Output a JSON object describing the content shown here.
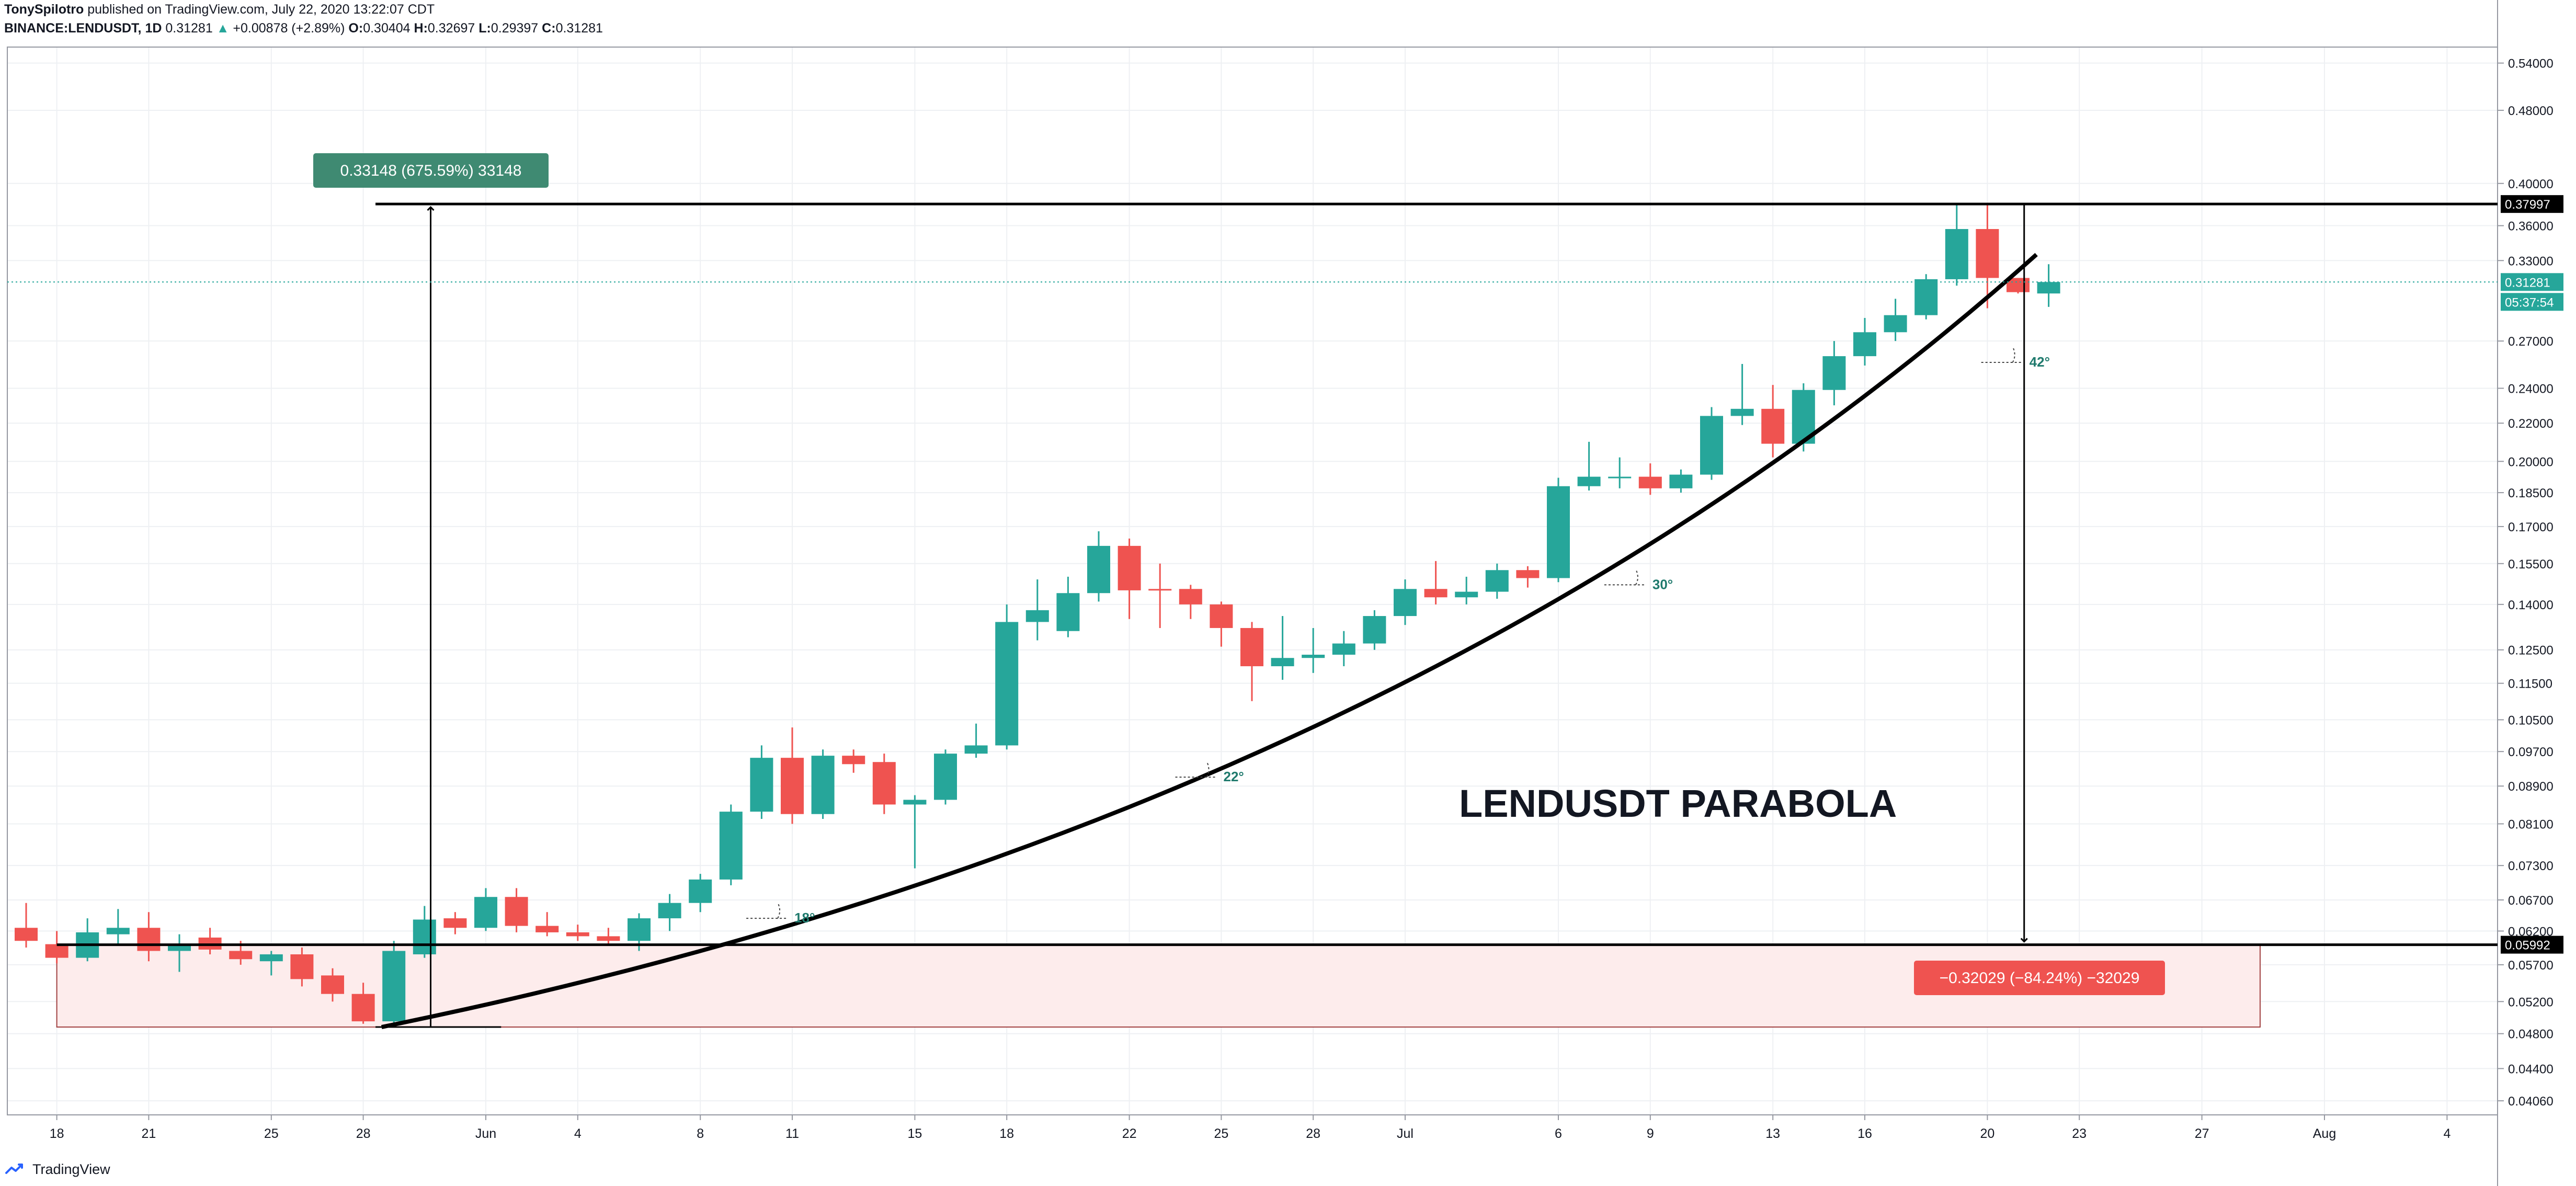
{
  "header": {
    "author": "TonySpilotro",
    "published": "published on TradingView.com, July 22, 2020 13:22:07 CDT",
    "symbol": "BINANCE:LENDUSDT, 1D",
    "last": "0.31281",
    "change_arrow": "▲",
    "change": "+0.00878 (+2.89%)",
    "o_label": "O:",
    "o": "0.30404",
    "h_label": "H:",
    "h": "0.32697",
    "l_label": "L:",
    "l": "0.29397",
    "c_label": "C:",
    "c": "0.31281"
  },
  "footer": {
    "brand": "TradingView"
  },
  "colors": {
    "up": "#26a69a",
    "down": "#ef5350",
    "line": "#000000",
    "range_fill": "#fdecec"
  },
  "chart_data": {
    "type": "candlestick",
    "title": "LENDUSDT PARABOLA",
    "y_scale": "log",
    "ylim": [
      0.0392,
      0.562
    ],
    "grid": true,
    "x_tick_labels": [
      "18",
      "21",
      "25",
      "28",
      "Jun",
      "4",
      "8",
      "11",
      "15",
      "18",
      "22",
      "25",
      "28",
      "Jul",
      "6",
      "9",
      "13",
      "16",
      "20",
      "23",
      "27",
      "Aug",
      "4"
    ],
    "y_tick_labels": [
      "0.54000",
      "0.48000",
      "0.40000",
      "0.36000",
      "0.33000",
      "0.27000",
      "0.24000",
      "0.22000",
      "0.20000",
      "0.18500",
      "0.17000",
      "0.15500",
      "0.14000",
      "0.12500",
      "0.11500",
      "0.10500",
      "0.09700",
      "0.08900",
      "0.08100",
      "0.07300",
      "0.06700",
      "0.06200",
      "0.05700",
      "0.05200",
      "0.04800",
      "0.04400",
      "0.04060"
    ],
    "price_labels": {
      "high_line": "0.37997",
      "last": "0.31281",
      "countdown": "05:37:54",
      "low_line": "0.05992"
    },
    "candles": [
      {
        "date": "May 17",
        "o": 0.0625,
        "h": 0.0665,
        "l": 0.0595,
        "c": 0.0605
      },
      {
        "date": "May 18",
        "o": 0.06,
        "h": 0.062,
        "l": 0.0572,
        "c": 0.058
      },
      {
        "date": "May 19",
        "o": 0.058,
        "h": 0.064,
        "l": 0.0575,
        "c": 0.0618
      },
      {
        "date": "May 20",
        "o": 0.0615,
        "h": 0.0655,
        "l": 0.06,
        "c": 0.0625
      },
      {
        "date": "May 21",
        "o": 0.0625,
        "h": 0.065,
        "l": 0.0575,
        "c": 0.059
      },
      {
        "date": "May 22",
        "o": 0.059,
        "h": 0.0615,
        "l": 0.056,
        "c": 0.06
      },
      {
        "date": "May 23",
        "o": 0.061,
        "h": 0.0625,
        "l": 0.0585,
        "c": 0.0592
      },
      {
        "date": "May 24",
        "o": 0.059,
        "h": 0.0605,
        "l": 0.057,
        "c": 0.0578
      },
      {
        "date": "May 25",
        "o": 0.0575,
        "h": 0.059,
        "l": 0.0555,
        "c": 0.0585
      },
      {
        "date": "May 26",
        "o": 0.0585,
        "h": 0.0595,
        "l": 0.054,
        "c": 0.055
      },
      {
        "date": "May 27",
        "o": 0.0555,
        "h": 0.0565,
        "l": 0.052,
        "c": 0.053
      },
      {
        "date": "May 28",
        "o": 0.053,
        "h": 0.0545,
        "l": 0.0492,
        "c": 0.0495
      },
      {
        "date": "May 29",
        "o": 0.0495,
        "h": 0.0605,
        "l": 0.049,
        "c": 0.059
      },
      {
        "date": "May 30",
        "o": 0.0585,
        "h": 0.066,
        "l": 0.058,
        "c": 0.0638
      },
      {
        "date": "May 31",
        "o": 0.064,
        "h": 0.065,
        "l": 0.0615,
        "c": 0.0625
      },
      {
        "date": "Jun 1",
        "o": 0.0625,
        "h": 0.069,
        "l": 0.062,
        "c": 0.0675
      },
      {
        "date": "Jun 2",
        "o": 0.0675,
        "h": 0.069,
        "l": 0.0618,
        "c": 0.0628
      },
      {
        "date": "Jun 3",
        "o": 0.0628,
        "h": 0.065,
        "l": 0.0612,
        "c": 0.0618
      },
      {
        "date": "Jun 4",
        "o": 0.0618,
        "h": 0.063,
        "l": 0.0605,
        "c": 0.0612
      },
      {
        "date": "Jun 5",
        "o": 0.0612,
        "h": 0.0625,
        "l": 0.06,
        "c": 0.0605
      },
      {
        "date": "Jun 6",
        "o": 0.0605,
        "h": 0.0648,
        "l": 0.059,
        "c": 0.064
      },
      {
        "date": "Jun 7",
        "o": 0.064,
        "h": 0.068,
        "l": 0.062,
        "c": 0.0665
      },
      {
        "date": "Jun 8",
        "o": 0.0665,
        "h": 0.0715,
        "l": 0.065,
        "c": 0.0705
      },
      {
        "date": "Jun 9",
        "o": 0.0705,
        "h": 0.085,
        "l": 0.0695,
        "c": 0.0835
      },
      {
        "date": "Jun 10",
        "o": 0.0835,
        "h": 0.0985,
        "l": 0.082,
        "c": 0.0955
      },
      {
        "date": "Jun 11",
        "o": 0.0955,
        "h": 0.103,
        "l": 0.081,
        "c": 0.083
      },
      {
        "date": "Jun 12",
        "o": 0.083,
        "h": 0.0975,
        "l": 0.082,
        "c": 0.096
      },
      {
        "date": "Jun 13",
        "o": 0.096,
        "h": 0.0975,
        "l": 0.092,
        "c": 0.094
      },
      {
        "date": "Jun 14",
        "o": 0.0945,
        "h": 0.0965,
        "l": 0.083,
        "c": 0.085
      },
      {
        "date": "Jun 15",
        "o": 0.085,
        "h": 0.087,
        "l": 0.0725,
        "c": 0.086
      },
      {
        "date": "Jun 16",
        "o": 0.086,
        "h": 0.0975,
        "l": 0.085,
        "c": 0.0965
      },
      {
        "date": "Jun 17",
        "o": 0.0965,
        "h": 0.104,
        "l": 0.0955,
        "c": 0.0985
      },
      {
        "date": "Jun 18",
        "o": 0.0985,
        "h": 0.14,
        "l": 0.0975,
        "c": 0.134
      },
      {
        "date": "Jun 19",
        "o": 0.134,
        "h": 0.149,
        "l": 0.128,
        "c": 0.138
      },
      {
        "date": "Jun 20",
        "o": 0.131,
        "h": 0.15,
        "l": 0.129,
        "c": 0.144
      },
      {
        "date": "Jun 21",
        "o": 0.144,
        "h": 0.168,
        "l": 0.141,
        "c": 0.162
      },
      {
        "date": "Jun 22",
        "o": 0.162,
        "h": 0.165,
        "l": 0.135,
        "c": 0.145
      },
      {
        "date": "Jun 23",
        "o": 0.1455,
        "h": 0.155,
        "l": 0.132,
        "c": 0.145
      },
      {
        "date": "Jun 24",
        "o": 0.1455,
        "h": 0.147,
        "l": 0.135,
        "c": 0.14
      },
      {
        "date": "Jun 25",
        "o": 0.14,
        "h": 0.141,
        "l": 0.126,
        "c": 0.132
      },
      {
        "date": "Jun 26",
        "o": 0.132,
        "h": 0.134,
        "l": 0.11,
        "c": 0.12
      },
      {
        "date": "Jun 27",
        "o": 0.12,
        "h": 0.136,
        "l": 0.116,
        "c": 0.1225
      },
      {
        "date": "Jun 28",
        "o": 0.1225,
        "h": 0.132,
        "l": 0.118,
        "c": 0.1235
      },
      {
        "date": "Jun 29",
        "o": 0.1235,
        "h": 0.131,
        "l": 0.12,
        "c": 0.127
      },
      {
        "date": "Jun 30",
        "o": 0.127,
        "h": 0.138,
        "l": 0.125,
        "c": 0.136
      },
      {
        "date": "Jul 1",
        "o": 0.136,
        "h": 0.149,
        "l": 0.133,
        "c": 0.1455
      },
      {
        "date": "Jul 2",
        "o": 0.1455,
        "h": 0.156,
        "l": 0.14,
        "c": 0.1425
      },
      {
        "date": "Jul 3",
        "o": 0.1425,
        "h": 0.15,
        "l": 0.14,
        "c": 0.1445
      },
      {
        "date": "Jul 4",
        "o": 0.1445,
        "h": 0.155,
        "l": 0.142,
        "c": 0.1525
      },
      {
        "date": "Jul 5",
        "o": 0.1525,
        "h": 0.154,
        "l": 0.146,
        "c": 0.1495
      },
      {
        "date": "Jul 6",
        "o": 0.1495,
        "h": 0.192,
        "l": 0.148,
        "c": 0.188
      },
      {
        "date": "Jul 7",
        "o": 0.188,
        "h": 0.21,
        "l": 0.186,
        "c": 0.1925
      },
      {
        "date": "Jul 8",
        "o": 0.1925,
        "h": 0.202,
        "l": 0.187,
        "c": 0.1925
      },
      {
        "date": "Jul 9",
        "o": 0.1925,
        "h": 0.199,
        "l": 0.184,
        "c": 0.187
      },
      {
        "date": "Jul 10",
        "o": 0.187,
        "h": 0.196,
        "l": 0.185,
        "c": 0.1935
      },
      {
        "date": "Jul 11",
        "o": 0.1935,
        "h": 0.229,
        "l": 0.191,
        "c": 0.224
      },
      {
        "date": "Jul 12",
        "o": 0.224,
        "h": 0.255,
        "l": 0.219,
        "c": 0.228
      },
      {
        "date": "Jul 13",
        "o": 0.228,
        "h": 0.242,
        "l": 0.202,
        "c": 0.209
      },
      {
        "date": "Jul 14",
        "o": 0.209,
        "h": 0.243,
        "l": 0.205,
        "c": 0.239
      },
      {
        "date": "Jul 15",
        "o": 0.239,
        "h": 0.27,
        "l": 0.23,
        "c": 0.26
      },
      {
        "date": "Jul 16",
        "o": 0.26,
        "h": 0.286,
        "l": 0.254,
        "c": 0.276
      },
      {
        "date": "Jul 17",
        "o": 0.276,
        "h": 0.3,
        "l": 0.27,
        "c": 0.288
      },
      {
        "date": "Jul 18",
        "o": 0.288,
        "h": 0.319,
        "l": 0.285,
        "c": 0.315
      },
      {
        "date": "Jul 19",
        "o": 0.315,
        "h": 0.38,
        "l": 0.31,
        "c": 0.357
      },
      {
        "date": "Jul 20",
        "o": 0.357,
        "h": 0.379,
        "l": 0.293,
        "c": 0.316
      },
      {
        "date": "Jul 21",
        "o": 0.316,
        "h": 0.316,
        "l": 0.304,
        "c": 0.305
      },
      {
        "date": "Jul 22",
        "o": 0.304,
        "h": 0.327,
        "l": 0.294,
        "c": 0.3128
      }
    ],
    "annotations": {
      "measure_up": "0.33148 (675.59%) 33148",
      "measure_down": "−0.32029 (−84.24%) −32029",
      "angles": [
        "18°",
        "22°",
        "30°",
        "42°"
      ]
    }
  }
}
